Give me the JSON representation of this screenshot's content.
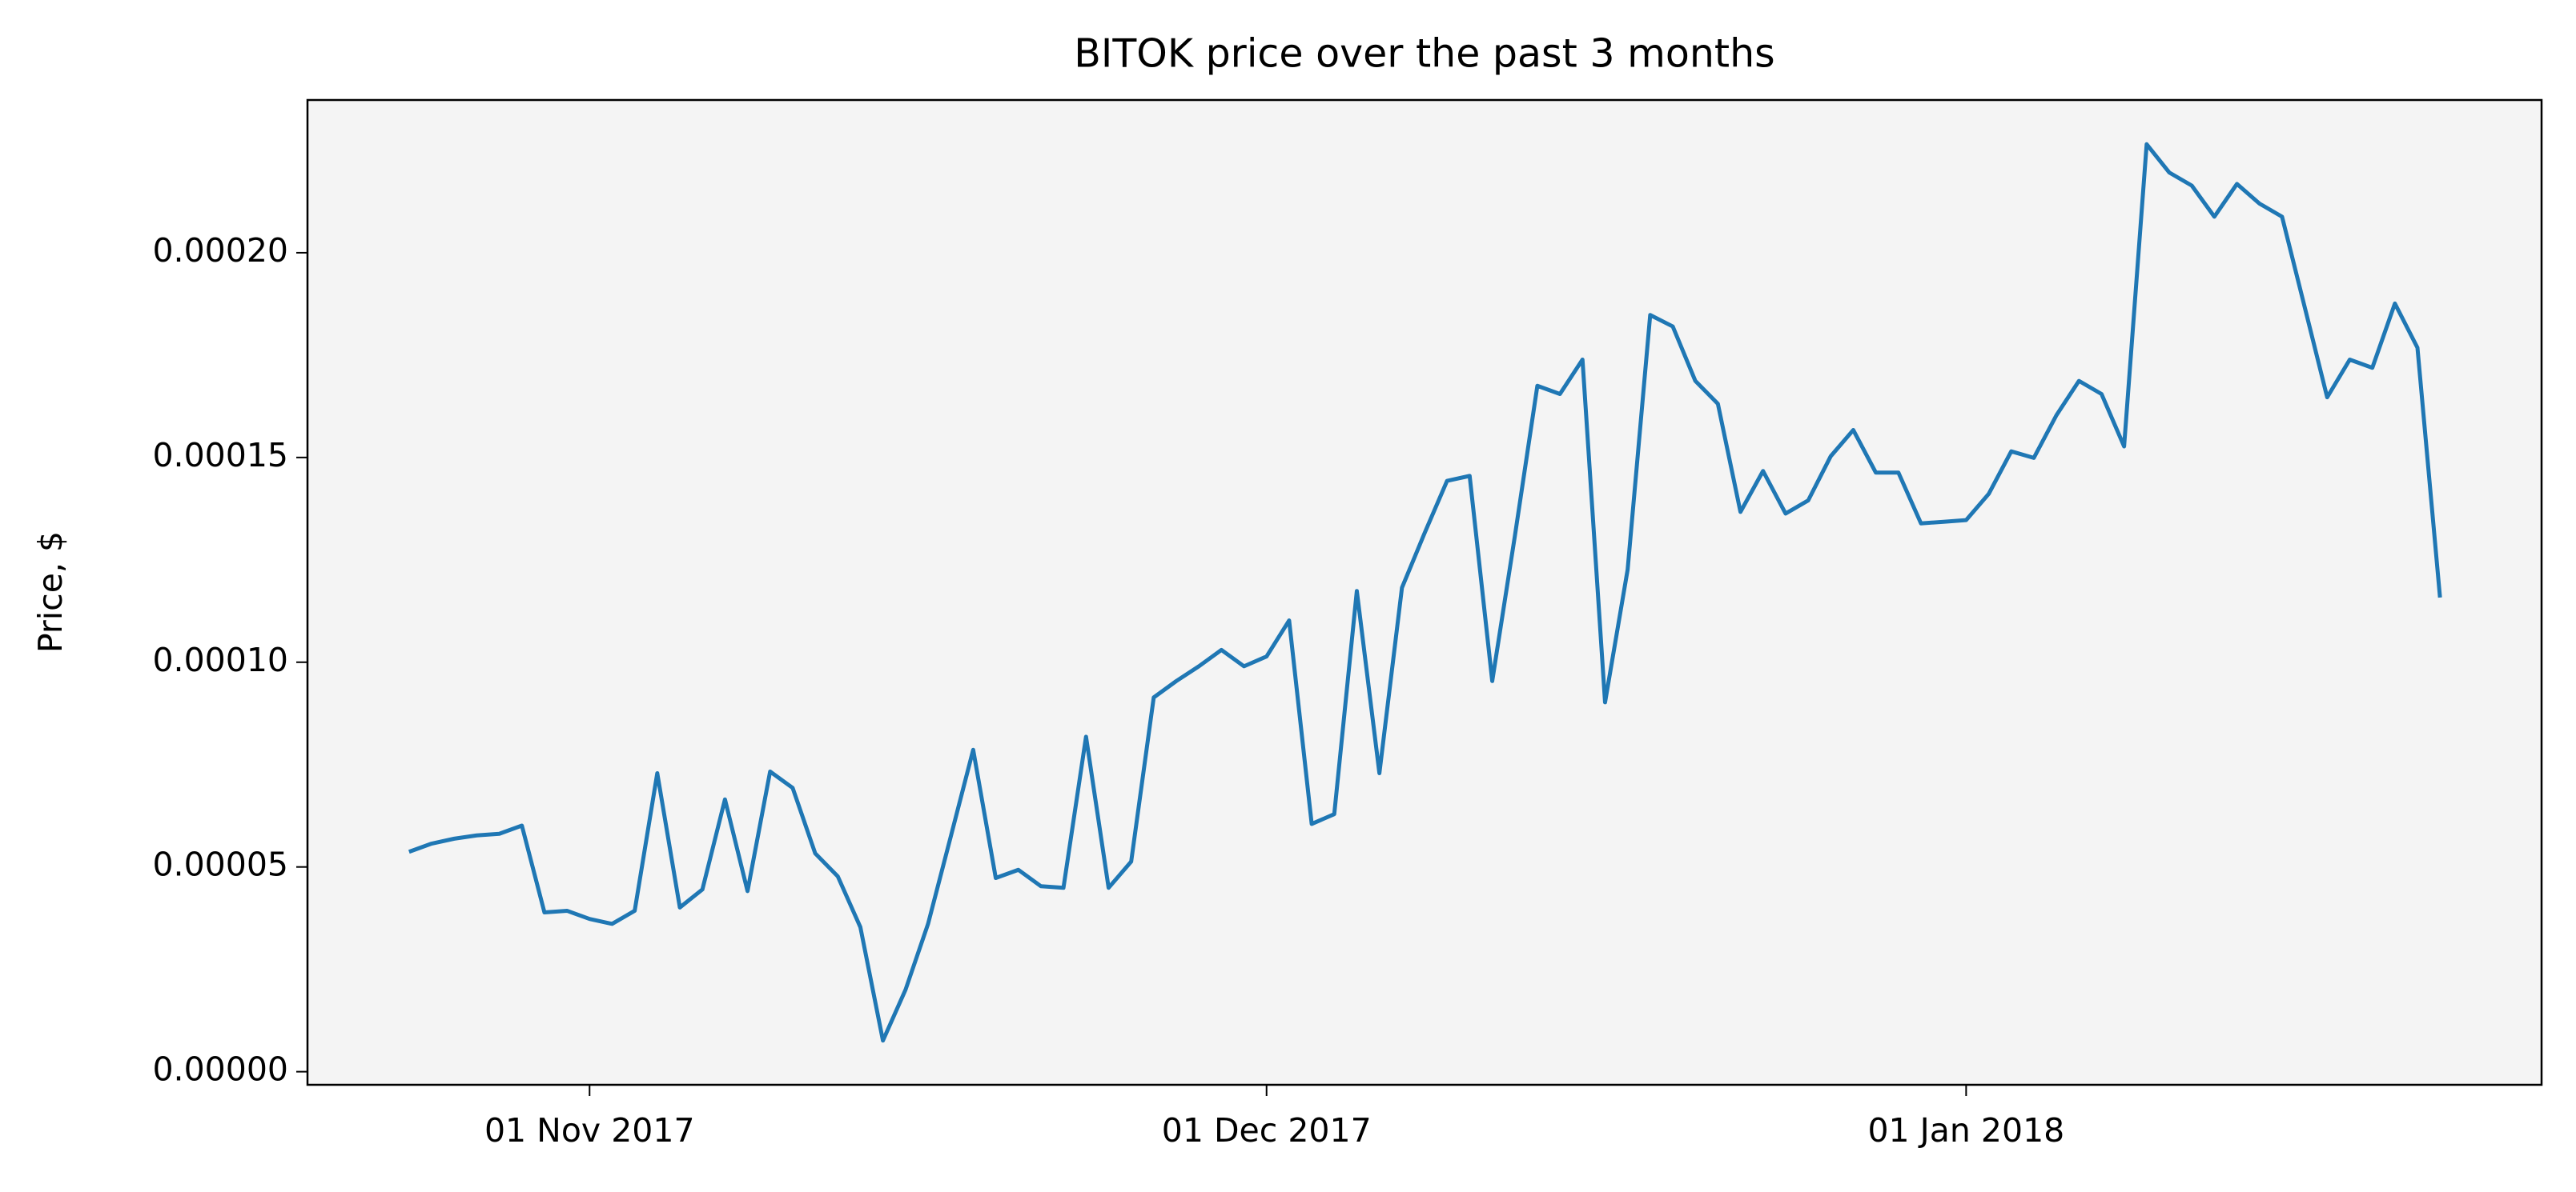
{
  "chart_data": {
    "type": "line",
    "title": "BITOK price over the past 3 months",
    "ylabel": "Price, $",
    "x": [
      "2017-10-24",
      "2017-10-25",
      "2017-10-26",
      "2017-10-27",
      "2017-10-28",
      "2017-10-29",
      "2017-10-30",
      "2017-10-31",
      "2017-11-01",
      "2017-11-02",
      "2017-11-03",
      "2017-11-04",
      "2017-11-05",
      "2017-11-06",
      "2017-11-07",
      "2017-11-08",
      "2017-11-09",
      "2017-11-10",
      "2017-11-11",
      "2017-11-12",
      "2017-11-13",
      "2017-11-14",
      "2017-11-15",
      "2017-11-16",
      "2017-11-17",
      "2017-11-18",
      "2017-11-19",
      "2017-11-20",
      "2017-11-21",
      "2017-11-22",
      "2017-11-23",
      "2017-11-24",
      "2017-11-25",
      "2017-11-26",
      "2017-11-27",
      "2017-11-28",
      "2017-11-29",
      "2017-11-30",
      "2017-12-01",
      "2017-12-02",
      "2017-12-03",
      "2017-12-04",
      "2017-12-05",
      "2017-12-06",
      "2017-12-07",
      "2017-12-08",
      "2017-12-09",
      "2017-12-10",
      "2017-12-11",
      "2017-12-12",
      "2017-12-13",
      "2017-12-14",
      "2017-12-15",
      "2017-12-16",
      "2017-12-17",
      "2017-12-18",
      "2017-12-19",
      "2017-12-20",
      "2017-12-21",
      "2017-12-22",
      "2017-12-23",
      "2017-12-24",
      "2017-12-25",
      "2017-12-26",
      "2017-12-27",
      "2017-12-28",
      "2017-12-29",
      "2017-12-30",
      "2017-12-31",
      "2018-01-01",
      "2018-01-02",
      "2018-01-03",
      "2018-01-04",
      "2018-01-05",
      "2018-01-06",
      "2018-01-07",
      "2018-01-08",
      "2018-01-09",
      "2018-01-10",
      "2018-01-11",
      "2018-01-12",
      "2018-01-13",
      "2018-01-14",
      "2018-01-15",
      "2018-01-16",
      "2018-01-17",
      "2018-01-18",
      "2018-01-19",
      "2018-01-20",
      "2018-01-21",
      "2018-01-22"
    ],
    "values": [
      5.37e-05,
      5.57e-05,
      5.69e-05,
      5.77e-05,
      5.81e-05,
      6.01e-05,
      3.89e-05,
      3.93e-05,
      3.73e-05,
      3.61e-05,
      3.93e-05,
      7.29e-05,
      4.01e-05,
      4.45e-05,
      6.65e-05,
      4.41e-05,
      7.33e-05,
      6.93e-05,
      5.33e-05,
      4.77e-05,
      3.53e-05,
      7.6e-06,
      2e-05,
      3.61e-05,
      5.73e-05,
      7.86e-05,
      4.73e-05,
      4.93e-05,
      4.53e-05,
      4.49e-05,
      8.18e-05,
      4.49e-05,
      5.13e-05,
      9.14e-05,
      9.54e-05,
      9.9e-05,
      0.000103,
      9.9e-05,
      0.0001014,
      0.0001102,
      6.05e-05,
      6.29e-05,
      0.0001174,
      7.29e-05,
      0.0001182,
      0.0001315,
      0.0001443,
      0.0001455,
      9.54e-05,
      0.0001307,
      0.0001675,
      0.0001655,
      0.0001739,
      9.02e-05,
      0.0001226,
      0.0001848,
      0.000182,
      0.0001687,
      0.0001631,
      0.0001367,
      0.0001467,
      0.0001363,
      0.0001395,
      0.0001503,
      0.0001567,
      0.0001463,
      0.0001463,
      0.0001339,
      0.0001343,
      0.0001347,
      0.0001411,
      0.0001515,
      0.0001499,
      0.0001603,
      0.0001687,
      0.0001655,
      0.0001527,
      0.0002265,
      0.0002196,
      0.0002164,
      0.0002088,
      0.0002168,
      0.000212,
      0.0002088,
      0.0001868,
      0.0001647,
      0.0001739,
      0.0001719,
      0.0001876,
      0.0001768,
      0.0001158
    ],
    "color": "#1f77b4",
    "background": "#f4f4f4",
    "xlim": [
      "2017-10-19T12:00Z",
      "2018-01-26T12:00Z"
    ],
    "xticks": [
      {
        "value": "2017-11-01",
        "label": "01 Nov 2017"
      },
      {
        "value": "2017-12-01",
        "label": "01 Dec 2017"
      },
      {
        "value": "2018-01-01",
        "label": "01 Jan 2018"
      }
    ],
    "ylim": [
      -3.2e-06,
      0.0002373
    ],
    "yticks": [
      {
        "value": 0,
        "label": "0.00000"
      },
      {
        "value": 5e-05,
        "label": "0.00005"
      },
      {
        "value": 0.0001,
        "label": "0.00010"
      },
      {
        "value": 0.00015,
        "label": "0.00015"
      },
      {
        "value": 0.0002,
        "label": "0.00020"
      }
    ],
    "grid": false
  }
}
